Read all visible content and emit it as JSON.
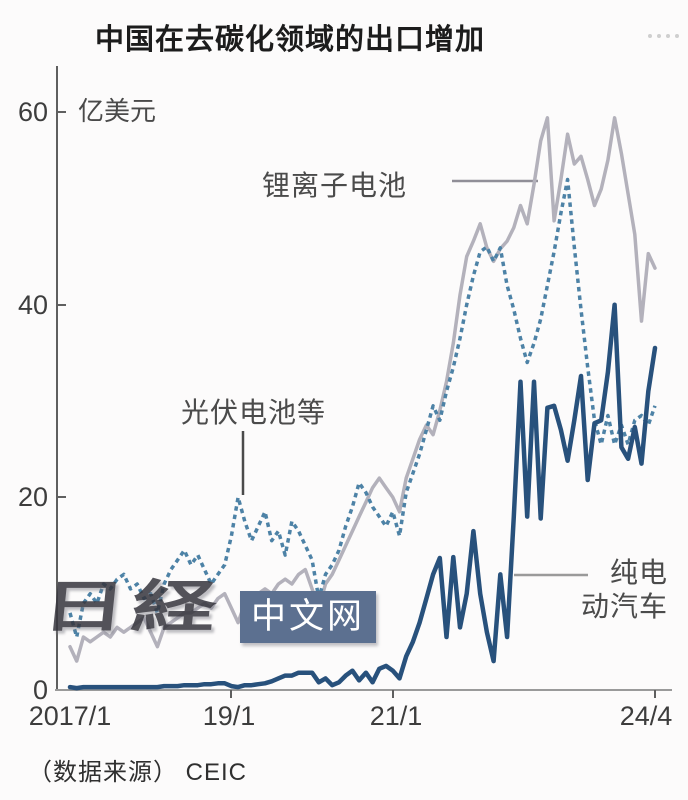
{
  "title": "中国在去碳化领域的出口增加",
  "unit_label": "亿美元",
  "source": "（数据来源） CEIC",
  "watermark": {
    "logo": "日経",
    "site": "中文网"
  },
  "colors": {
    "lithium_line": "#b3b1bb",
    "solar_line": "#4d82a6",
    "bev_line": "#28517c",
    "axis": "#6b6b6b",
    "watermark_box": "#5c7090"
  },
  "annotations": {
    "lithium": "锂离子电池",
    "solar": "光伏电池等",
    "bev_line1": "纯电",
    "bev_line2": "动汽车"
  },
  "chart_data": {
    "type": "line",
    "title": "中国在去碳化领域的出口增加",
    "ylabel": "亿美元",
    "ylim": [
      0,
      60
    ],
    "y_ticks": [
      0,
      20,
      40,
      60
    ],
    "x_start": "2017/1",
    "x_end": "2024/4",
    "frequency": "monthly",
    "x_tick_labels": [
      "2017/1",
      "19/1",
      "21/1",
      "24/4"
    ],
    "x_tick_month_index": [
      0,
      24,
      48,
      87
    ],
    "grid": false,
    "legend": "inline-annotations",
    "source": "CEIC",
    "series": [
      {
        "name": "锂离子电池",
        "style": "solid",
        "color": "#b3b1bb",
        "values": [
          4.5,
          3.0,
          5.5,
          5.0,
          5.5,
          6.0,
          5.5,
          6.5,
          6.0,
          6.5,
          7.0,
          7.5,
          6.0,
          4.5,
          6.5,
          7.0,
          7.5,
          8.0,
          8.0,
          8.5,
          9.0,
          8.5,
          9.5,
          10.0,
          8.5,
          7.0,
          9.0,
          9.5,
          10.0,
          10.5,
          10.0,
          11.0,
          11.5,
          11.0,
          12.0,
          12.5,
          10.5,
          8.5,
          11.0,
          12.0,
          13.5,
          15.0,
          16.5,
          18.0,
          19.5,
          21.0,
          22.0,
          21.0,
          20.0,
          18.5,
          22.0,
          24.0,
          26.0,
          27.5,
          26.5,
          29.0,
          32.0,
          36.0,
          41.0,
          45.0,
          46.6,
          48.4,
          45.9,
          44.5,
          45.8,
          46.6,
          48.0,
          50.3,
          48.4,
          52.5,
          57.0,
          59.4,
          48.7,
          53.0,
          57.7,
          54.6,
          55.4,
          53.0,
          50.3,
          52.0,
          55.0,
          59.4,
          55.7,
          51.5,
          47.3,
          38.3,
          45.3,
          43.8
        ]
      },
      {
        "name": "光伏电池等",
        "style": "dashed",
        "color": "#4d82a6",
        "values": [
          8.0,
          5.5,
          9.0,
          10.0,
          9.0,
          11.0,
          10.5,
          11.5,
          12.0,
          10.5,
          11.0,
          9.5,
          10.0,
          8.0,
          11.0,
          12.5,
          13.5,
          14.5,
          13.0,
          14.0,
          12.5,
          11.0,
          12.0,
          13.0,
          16.0,
          20.0,
          17.5,
          15.5,
          17.0,
          18.5,
          15.5,
          16.5,
          14.0,
          17.5,
          16.5,
          15.0,
          13.5,
          9.5,
          12.0,
          13.0,
          14.5,
          17.0,
          19.0,
          21.5,
          20.5,
          19.0,
          18.0,
          17.0,
          18.5,
          16.0,
          20.5,
          22.5,
          24.5,
          27.0,
          29.5,
          28.0,
          31.0,
          33.5,
          36.5,
          40.0,
          43.0,
          45.5,
          46.0,
          44.5,
          45.9,
          42.0,
          39.5,
          36.5,
          34.0,
          36.0,
          38.5,
          42.0,
          45.5,
          49.5,
          53.0,
          46.0,
          39.5,
          33.5,
          28.0,
          25.5,
          28.5,
          25.5,
          27.5,
          25.5,
          28.0,
          28.5,
          27.5,
          29.5
        ]
      },
      {
        "name": "纯电动汽车",
        "style": "solid",
        "color": "#28517c",
        "values": [
          0.3,
          0.2,
          0.3,
          0.3,
          0.3,
          0.3,
          0.3,
          0.3,
          0.3,
          0.3,
          0.3,
          0.3,
          0.3,
          0.3,
          0.4,
          0.4,
          0.4,
          0.5,
          0.5,
          0.5,
          0.6,
          0.6,
          0.7,
          0.7,
          0.4,
          0.3,
          0.5,
          0.5,
          0.6,
          0.7,
          0.9,
          1.2,
          1.5,
          1.5,
          1.8,
          1.8,
          1.8,
          0.8,
          1.2,
          0.5,
          0.8,
          1.5,
          2.0,
          1.0,
          1.8,
          0.8,
          2.2,
          2.5,
          2.0,
          1.2,
          3.5,
          5.0,
          7.0,
          9.5,
          12.0,
          13.7,
          5.5,
          13.8,
          6.5,
          10.0,
          16.5,
          10.0,
          6.0,
          3.0,
          12.0,
          5.5,
          18.0,
          32.0,
          18.0,
          32.0,
          17.8,
          29.3,
          29.5,
          27.0,
          23.8,
          28.0,
          32.6,
          21.8,
          27.7,
          28.0,
          33.0,
          40.0,
          25.2,
          24.0,
          27.3,
          23.5,
          31.0,
          35.5
        ]
      }
    ]
  }
}
